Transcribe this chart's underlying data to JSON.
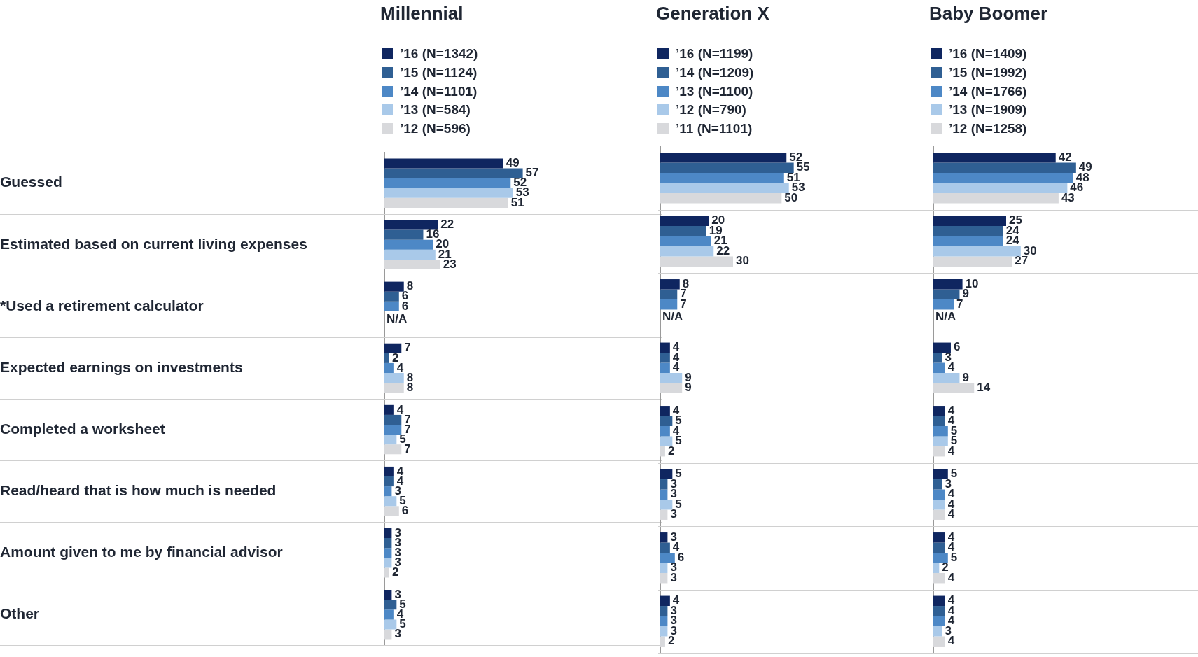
{
  "chart_data": [
    {
      "type": "bar",
      "orientation": "horizontal",
      "title": "Millennial",
      "categories": [
        "Guessed",
        "Estimated based on current living expenses",
        "*Used a retirement calculator",
        "Expected earnings on investments",
        "Completed a worksheet",
        "Read/heard that is how much is needed",
        "Amount given to me by financial advisor",
        "Other"
      ],
      "series": [
        {
          "name": "’16 (N=1342)",
          "color": "#0f2660",
          "values": [
            49,
            22,
            8,
            7,
            4,
            4,
            3,
            3
          ],
          "value_labels": [
            "49",
            "22",
            "8",
            "7",
            "4",
            "4",
            "3",
            "3"
          ]
        },
        {
          "name": "’15 (N=1124)",
          "color": "#2f5f93",
          "values": [
            57,
            16,
            6,
            2,
            7,
            4,
            3,
            5
          ],
          "value_labels": [
            "57",
            "16",
            "6",
            "2",
            "7",
            "4",
            "3",
            "5"
          ]
        },
        {
          "name": "’14 (N=1101)",
          "color": "#4d88c6",
          "values": [
            52,
            20,
            6,
            4,
            7,
            3,
            3,
            4
          ],
          "value_labels": [
            "52",
            "20",
            "6",
            "4",
            "7",
            "3",
            "3",
            "4"
          ]
        },
        {
          "name": "’13 (N=584)",
          "color": "#a9c9e9",
          "values": [
            53,
            21,
            null,
            8,
            5,
            5,
            3,
            5
          ],
          "value_labels": [
            "53",
            "21",
            "N/A",
            "8",
            "5",
            "5",
            "3",
            "5"
          ]
        },
        {
          "name": "’12 (N=596)",
          "color": "#d8d9dc",
          "values": [
            51,
            23,
            null,
            8,
            7,
            6,
            2,
            3
          ],
          "value_labels": [
            "51",
            "23",
            null,
            "8",
            "7",
            "6",
            "2",
            "3"
          ]
        }
      ],
      "grid": "y",
      "legend": "top left",
      "tick_labels": "y"
    },
    {
      "type": "bar",
      "orientation": "horizontal",
      "title": "Generation X",
      "categories": [
        null,
        null,
        null,
        null,
        null,
        null,
        null,
        null
      ],
      "series": [
        {
          "name": "’16 (N=1199)",
          "color": "#0f2660",
          "values": [
            52,
            20,
            8,
            4,
            4,
            5,
            3,
            4
          ],
          "value_labels": [
            "52",
            "20",
            "8",
            "4",
            "4",
            "5",
            "3",
            "4"
          ]
        },
        {
          "name": "’14 (N=1209)",
          "color": "#2f5f93",
          "values": [
            55,
            19,
            7,
            4,
            5,
            3,
            4,
            3
          ],
          "value_labels": [
            "55",
            "19",
            "7",
            "4",
            "5",
            "3",
            "4",
            "3"
          ]
        },
        {
          "name": "’13 (N=1100)",
          "color": "#4d88c6",
          "values": [
            51,
            21,
            7,
            4,
            4,
            3,
            6,
            3
          ],
          "value_labels": [
            "51",
            "21",
            "7",
            "4",
            "4",
            "3",
            "6",
            "3"
          ]
        },
        {
          "name": "’12 (N=790)",
          "color": "#a9c9e9",
          "values": [
            53,
            22,
            null,
            9,
            5,
            5,
            3,
            3
          ],
          "value_labels": [
            "53",
            "22",
            "N/A",
            "9",
            "5",
            "5",
            "3",
            "3"
          ]
        },
        {
          "name": "’11 (N=1101)",
          "color": "#d8d9dc",
          "values": [
            50,
            30,
            null,
            9,
            2,
            3,
            3,
            2
          ],
          "value_labels": [
            "50",
            "30",
            null,
            "9",
            "2",
            "3",
            "3",
            "2"
          ]
        }
      ],
      "grid": "y",
      "legend": "top left",
      "tick_labels": false
    },
    {
      "type": "bar",
      "orientation": "horizontal",
      "title": "Baby Boomer",
      "categories": [
        null,
        null,
        null,
        null,
        null,
        null,
        null,
        null
      ],
      "series": [
        {
          "name": "’16 (N=1409)",
          "color": "#0f2660",
          "values": [
            42,
            25,
            10,
            6,
            4,
            5,
            4,
            4
          ],
          "value_labels": [
            "42",
            "25",
            "10",
            "6",
            "4",
            "5",
            "4",
            "4"
          ]
        },
        {
          "name": "’15 (N=1992)",
          "color": "#2f5f93",
          "values": [
            49,
            24,
            9,
            3,
            4,
            3,
            4,
            4
          ],
          "value_labels": [
            "49",
            "24",
            "9",
            "3",
            "4",
            "3",
            "4",
            "4"
          ]
        },
        {
          "name": "’14 (N=1766)",
          "color": "#4d88c6",
          "values": [
            48,
            24,
            7,
            4,
            5,
            4,
            5,
            4
          ],
          "value_labels": [
            "48",
            "24",
            "7",
            "4",
            "5",
            "4",
            "5",
            "4"
          ]
        },
        {
          "name": "’13 (N=1909)",
          "color": "#a9c9e9",
          "values": [
            46,
            30,
            null,
            9,
            5,
            4,
            2,
            3
          ],
          "value_labels": [
            "46",
            "30",
            "N/A",
            "9",
            "5",
            "4",
            "2",
            "3"
          ]
        },
        {
          "name": "’12 (N=1258)",
          "color": "#d8d9dc",
          "values": [
            43,
            27,
            null,
            14,
            4,
            4,
            4,
            4
          ],
          "value_labels": [
            "43",
            "27",
            null,
            "14",
            "4",
            "4",
            "4",
            "4"
          ]
        }
      ],
      "grid": "y",
      "legend": "top left",
      "tick_labels": false
    }
  ]
}
